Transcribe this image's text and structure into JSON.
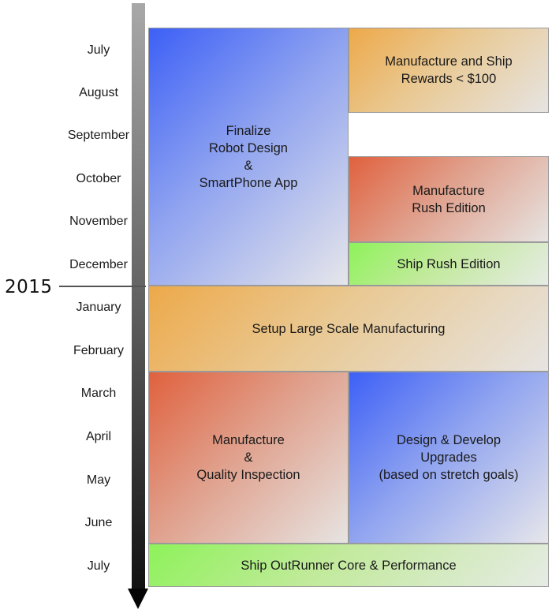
{
  "timeline": {
    "year_label": "2015",
    "months": [
      "July",
      "August",
      "September",
      "October",
      "November",
      "December",
      "January",
      "February",
      "March",
      "April",
      "May",
      "June",
      "July"
    ]
  },
  "blocks": {
    "finalize_design": {
      "color": "blue",
      "lines": [
        "Finalize",
        "Robot Design",
        "&",
        "SmartPhone App"
      ]
    },
    "ship_rewards": {
      "color": "orange",
      "lines": [
        "Manufacture and Ship",
        "Rewards < $100"
      ]
    },
    "manufacture_rush": {
      "color": "red",
      "lines": [
        "Manufacture",
        "Rush Edition"
      ]
    },
    "ship_rush": {
      "color": "green",
      "lines": [
        "Ship Rush Edition"
      ]
    },
    "setup_manufacturing": {
      "color": "orange",
      "lines": [
        "Setup Large Scale Manufacturing"
      ]
    },
    "manufacture_qa": {
      "color": "red",
      "lines": [
        "Manufacture",
        "&",
        "Quality Inspection"
      ]
    },
    "design_upgrades": {
      "color": "blue",
      "lines": [
        "Design & Develop",
        "Upgrades",
        "(based on stretch goals)"
      ]
    },
    "ship_core": {
      "color": "green",
      "lines": [
        "Ship OutRunner Core & Performance"
      ]
    }
  },
  "colors": {
    "blue": "#3d60f6",
    "orange": "#eda94a",
    "red": "#e0613e",
    "green": "#8ef25a",
    "axis": "#111111",
    "border": "#9a9a9a"
  }
}
